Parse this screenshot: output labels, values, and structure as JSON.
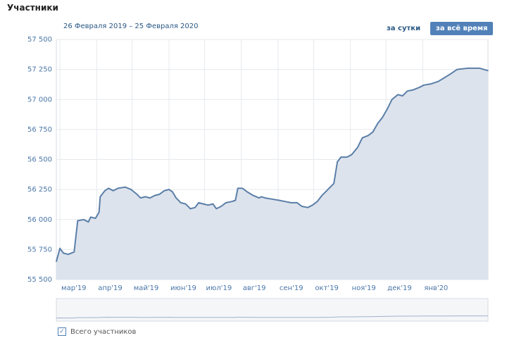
{
  "header": {
    "title": "Участники",
    "date_range": "26 Февраля 2019 – 25 Февраля 2020",
    "btn_day": "за сутки",
    "btn_all": "за всё время"
  },
  "legend": {
    "label": "Всего участников",
    "check": "✓"
  },
  "colors": {
    "line": "#5b7fa8",
    "fill": "#dde3ec",
    "grid": "#e6e9ee",
    "accent": "#5181b8"
  },
  "chart_data": {
    "type": "area",
    "ylim": [
      55500,
      57500
    ],
    "yticks": [
      {
        "value": 55500,
        "label": "55 500"
      },
      {
        "value": 55750,
        "label": "55 750"
      },
      {
        "value": 56000,
        "label": "56 000"
      },
      {
        "value": 56250,
        "label": "56 250"
      },
      {
        "value": 56500,
        "label": "56 500"
      },
      {
        "value": 56750,
        "label": "56 750"
      },
      {
        "value": 57000,
        "label": "57 000"
      },
      {
        "value": 57250,
        "label": "57 250"
      },
      {
        "value": 57500,
        "label": "57 500"
      }
    ],
    "xlim": [
      "2019-02-26",
      "2020-02-25"
    ],
    "xticks": [
      {
        "date": "2019-03-01",
        "label": "мар'19"
      },
      {
        "date": "2019-04-01",
        "label": "апр'19"
      },
      {
        "date": "2019-05-01",
        "label": "май'19"
      },
      {
        "date": "2019-06-01",
        "label": "июн'19"
      },
      {
        "date": "2019-07-01",
        "label": "июл'19"
      },
      {
        "date": "2019-08-01",
        "label": "авг'19"
      },
      {
        "date": "2019-09-01",
        "label": "сен'19"
      },
      {
        "date": "2019-10-01",
        "label": "окт'19"
      },
      {
        "date": "2019-11-01",
        "label": "ноя'19"
      },
      {
        "date": "2019-12-01",
        "label": "дек'19"
      },
      {
        "date": "2020-01-01",
        "label": "янв'20"
      }
    ],
    "series": [
      {
        "points": [
          [
            "2019-02-26",
            55650
          ],
          [
            "2019-03-01",
            55760
          ],
          [
            "2019-03-04",
            55720
          ],
          [
            "2019-03-08",
            55710
          ],
          [
            "2019-03-13",
            55730
          ],
          [
            "2019-03-16",
            55990
          ],
          [
            "2019-03-21",
            56000
          ],
          [
            "2019-03-25",
            55980
          ],
          [
            "2019-03-27",
            56020
          ],
          [
            "2019-03-31",
            56010
          ],
          [
            "2019-04-03",
            56060
          ],
          [
            "2019-04-04",
            56190
          ],
          [
            "2019-04-08",
            56240
          ],
          [
            "2019-04-11",
            56260
          ],
          [
            "2019-04-15",
            56240
          ],
          [
            "2019-04-19",
            56260
          ],
          [
            "2019-04-25",
            56270
          ],
          [
            "2019-04-30",
            56250
          ],
          [
            "2019-05-05",
            56210
          ],
          [
            "2019-05-08",
            56180
          ],
          [
            "2019-05-12",
            56190
          ],
          [
            "2019-05-16",
            56180
          ],
          [
            "2019-05-20",
            56200
          ],
          [
            "2019-05-24",
            56210
          ],
          [
            "2019-05-28",
            56240
          ],
          [
            "2019-06-01",
            56250
          ],
          [
            "2019-06-04",
            56230
          ],
          [
            "2019-06-07",
            56180
          ],
          [
            "2019-06-11",
            56140
          ],
          [
            "2019-06-15",
            56130
          ],
          [
            "2019-06-19",
            56090
          ],
          [
            "2019-06-23",
            56100
          ],
          [
            "2019-06-26",
            56140
          ],
          [
            "2019-06-30",
            56130
          ],
          [
            "2019-07-04",
            56120
          ],
          [
            "2019-07-08",
            56130
          ],
          [
            "2019-07-11",
            56090
          ],
          [
            "2019-07-15",
            56110
          ],
          [
            "2019-07-19",
            56140
          ],
          [
            "2019-07-24",
            56150
          ],
          [
            "2019-07-27",
            56160
          ],
          [
            "2019-07-29",
            56260
          ],
          [
            "2019-08-02",
            56260
          ],
          [
            "2019-08-06",
            56230
          ],
          [
            "2019-08-11",
            56200
          ],
          [
            "2019-08-16",
            56180
          ],
          [
            "2019-08-18",
            56190
          ],
          [
            "2019-08-21",
            56180
          ],
          [
            "2019-08-27",
            56170
          ],
          [
            "2019-09-02",
            56160
          ],
          [
            "2019-09-07",
            56150
          ],
          [
            "2019-09-12",
            56140
          ],
          [
            "2019-09-17",
            56140
          ],
          [
            "2019-09-21",
            56110
          ],
          [
            "2019-09-26",
            56100
          ],
          [
            "2019-09-30",
            56120
          ],
          [
            "2019-10-04",
            56150
          ],
          [
            "2019-10-08",
            56200
          ],
          [
            "2019-10-12",
            56240
          ],
          [
            "2019-10-15",
            56270
          ],
          [
            "2019-10-18",
            56300
          ],
          [
            "2019-10-21",
            56480
          ],
          [
            "2019-10-24",
            56520
          ],
          [
            "2019-10-29",
            56520
          ],
          [
            "2019-11-02",
            56540
          ],
          [
            "2019-11-07",
            56600
          ],
          [
            "2019-11-11",
            56680
          ],
          [
            "2019-11-16",
            56700
          ],
          [
            "2019-11-20",
            56730
          ],
          [
            "2019-11-24",
            56800
          ],
          [
            "2019-11-28",
            56850
          ],
          [
            "2019-12-02",
            56920
          ],
          [
            "2019-12-06",
            57000
          ],
          [
            "2019-12-11",
            57040
          ],
          [
            "2019-12-15",
            57030
          ],
          [
            "2019-12-19",
            57070
          ],
          [
            "2019-12-24",
            57080
          ],
          [
            "2019-12-29",
            57100
          ],
          [
            "2020-01-02",
            57120
          ],
          [
            "2020-01-08",
            57130
          ],
          [
            "2020-01-14",
            57150
          ],
          [
            "2020-01-19",
            57180
          ],
          [
            "2020-01-24",
            57210
          ],
          [
            "2020-01-30",
            57250
          ],
          [
            "2020-02-08",
            57260
          ],
          [
            "2020-02-18",
            57260
          ],
          [
            "2020-02-25",
            57240
          ]
        ]
      }
    ]
  }
}
